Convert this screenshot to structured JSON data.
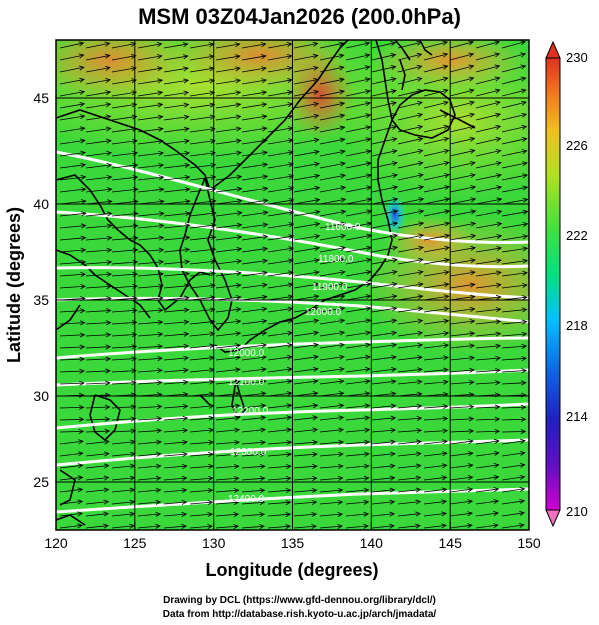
{
  "title": "MSM 03Z04Jan2026 (200.0hPa)",
  "xlabel": "Longitude (degrees)",
  "ylabel": "Latitude  (degrees)",
  "x_ticks": [
    "120",
    "125",
    "130",
    "135",
    "140",
    "145",
    "150"
  ],
  "y_ticks": [
    "25",
    "30",
    "35",
    "40",
    "45"
  ],
  "colorbar": {
    "labels": [
      "230",
      "226",
      "222",
      "218",
      "214",
      "210"
    ],
    "range": [
      210,
      230
    ],
    "colors": [
      "#d000d0",
      "#3020c0",
      "#00c0ff",
      "#00e070",
      "#50e040",
      "#d0e020",
      "#f0a020",
      "#f06010",
      "#e03020"
    ]
  },
  "contour_labels": [
    "11600.0",
    "11800.0",
    "11900.0",
    "12000.0",
    "12100.0",
    "12200.0",
    "12300.0",
    "12400.0"
  ],
  "credits": {
    "line1": "Drawing by DCL (https://www.gfd-dennou.org/library/dcl/)",
    "line2": "Data from http://database.rish.kyoto-u.ac.jp/arch/jmadata/"
  },
  "map_data": {
    "extent": {
      "lon": [
        120,
        150
      ],
      "lat": [
        22.5,
        48
      ]
    },
    "field": "temperature (K)",
    "contour_field": "geopotential height (m)",
    "vectors": "wind"
  }
}
